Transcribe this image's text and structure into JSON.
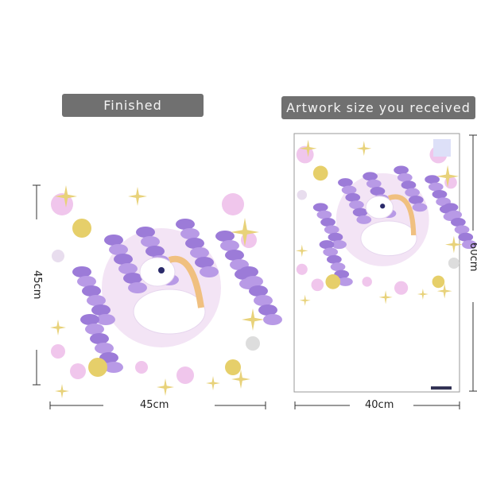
{
  "left_panel": {
    "label": "Finished",
    "width": "45cm",
    "height": "45cm"
  },
  "right_panel": {
    "label": "Artwork size you received",
    "width": "40cm",
    "height": "60cm"
  },
  "colors": {
    "label_bg": "#707070",
    "lilac": "#b89ae6",
    "pink": "#f0c6ec",
    "gold": "#e6cf6a",
    "star_gold": "#e8d27a"
  }
}
